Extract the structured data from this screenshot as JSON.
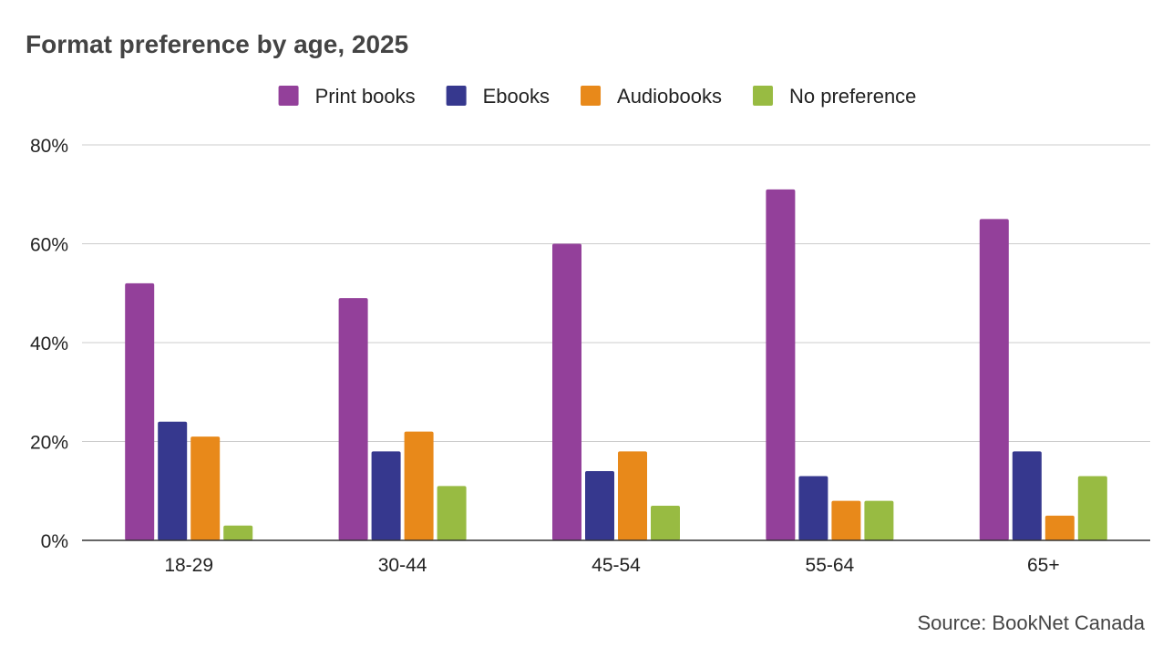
{
  "chart_data": {
    "type": "bar",
    "title": "Format preference by age, 2025",
    "categories": [
      "18-29",
      "30-44",
      "45-54",
      "55-64",
      "65+"
    ],
    "series": [
      {
        "name": "Print books",
        "color": "#93409A",
        "values": [
          52,
          49,
          60,
          71,
          65
        ]
      },
      {
        "name": "Ebooks",
        "color": "#36388E",
        "values": [
          24,
          18,
          14,
          13,
          18
        ]
      },
      {
        "name": "Audiobooks",
        "color": "#E8891A",
        "values": [
          21,
          22,
          18,
          8,
          5
        ]
      },
      {
        "name": "No preference",
        "color": "#98BB42",
        "values": [
          3,
          11,
          7,
          8,
          13
        ]
      }
    ],
    "ylim": [
      0,
      80
    ],
    "yticks": [
      0,
      20,
      40,
      60,
      80
    ],
    "ytick_labels": [
      "0%",
      "20%",
      "40%",
      "60%",
      "80%"
    ],
    "xlabel": "",
    "ylabel": "",
    "grid": true,
    "legend_position": "top-center",
    "source": "Source: BookNet Canada"
  }
}
